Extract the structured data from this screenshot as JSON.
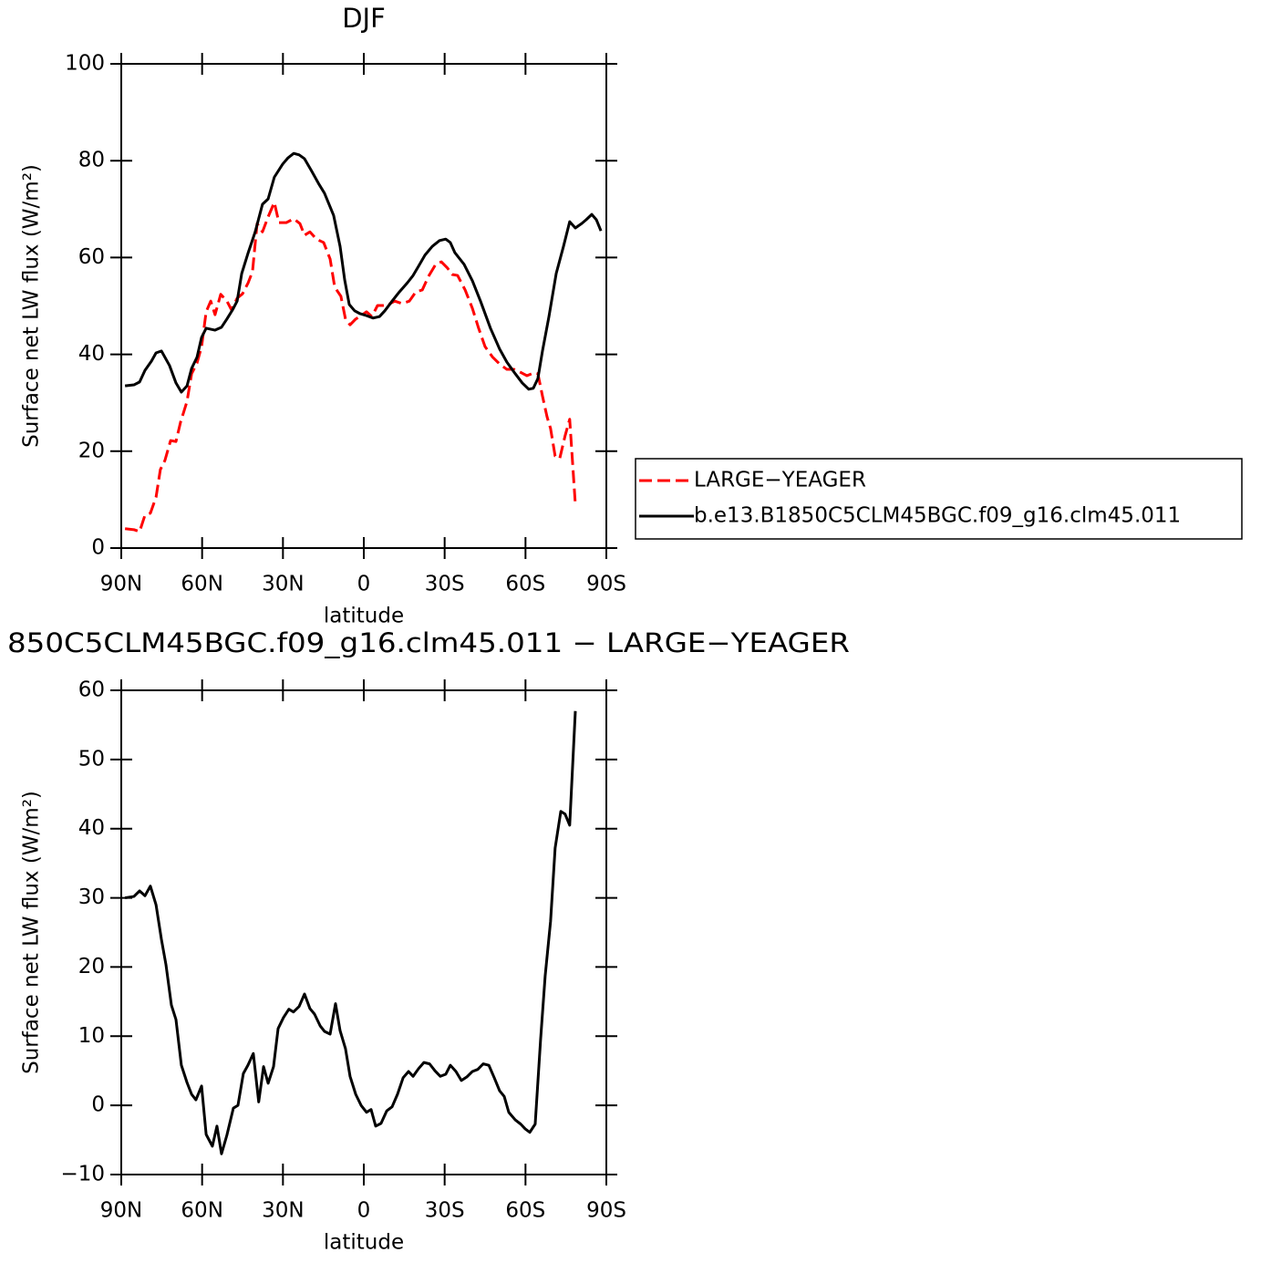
{
  "chart_data": [
    {
      "type": "line",
      "title": "DJF",
      "x_label": "latitude",
      "y_label": "Surface net LW flux (W/m²)",
      "xlim": [
        90,
        -90
      ],
      "xticks": [
        {
          "value": 90,
          "label": "90N"
        },
        {
          "value": 60,
          "label": "60N"
        },
        {
          "value": 30,
          "label": "30N"
        },
        0,
        {
          "value": -30,
          "label": "30S"
        },
        {
          "value": -60,
          "label": "60S"
        },
        {
          "value": -90,
          "label": "90S"
        }
      ],
      "ylim": [
        0,
        100
      ],
      "yticks": [
        0,
        20,
        40,
        60,
        80,
        100
      ],
      "legend": "right",
      "series": [
        {
          "name": "LARGE−YEAGER",
          "color": "#ff0000",
          "dash": "dashed",
          "x": [
            88.6,
            85.3,
            83.2,
            81.2,
            79.2,
            77.1,
            75.5,
            73.8,
            71.7,
            69.7,
            68.0,
            65.6,
            63.9,
            61.9,
            60.2,
            58.5,
            56.8,
            55.2,
            53.1,
            50.8,
            49.1,
            47.0,
            45.0,
            42.9,
            41.3,
            39.6,
            37.6,
            35.5,
            33.2,
            31.5,
            28.8,
            26.0,
            23.7,
            22.0,
            20.0,
            17.6,
            14.9,
            12.5,
            10.8,
            8.5,
            6.8,
            5.1,
            3.0,
            1.0,
            -1.0,
            -3.0,
            -5.1,
            -7.1,
            -9.1,
            -11.5,
            -14.2,
            -16.9,
            -19.3,
            -21.7,
            -24.0,
            -26.7,
            -28.8,
            -31.1,
            -32.8,
            -34.8,
            -37.6,
            -40.3,
            -42.6,
            -45.0,
            -47.7,
            -50.4,
            -53.1,
            -55.8,
            -58.5,
            -60.5,
            -63.2,
            -64.6,
            -66.3,
            -68.0,
            -69.3,
            -71.0,
            -72.7,
            -74.7,
            -76.4,
            -78.5
          ],
          "values": [
            4.0,
            3.8,
            3.4,
            6.8,
            7.2,
            10.5,
            16.2,
            18.1,
            22.2,
            22.0,
            26.0,
            30.3,
            36.0,
            38.2,
            41.6,
            48.8,
            51.0,
            48.2,
            52.4,
            51.0,
            49.2,
            51.6,
            52.5,
            54.8,
            57.1,
            67.0,
            65.3,
            68.4,
            71.4,
            67.2,
            67.2,
            68.0,
            67.0,
            64.6,
            65.3,
            63.8,
            63.1,
            59.7,
            53.9,
            52.0,
            47.3,
            46.1,
            47.3,
            48.0,
            48.8,
            47.8,
            50.1,
            50.1,
            50.3,
            51.0,
            50.5,
            51.0,
            52.9,
            53.3,
            56.1,
            58.6,
            59.1,
            57.8,
            56.5,
            56.3,
            53.3,
            49.5,
            45.4,
            41.6,
            39.5,
            38.0,
            36.9,
            36.9,
            36.2,
            35.6,
            36.2,
            36.0,
            31.4,
            27.1,
            24.7,
            19.0,
            18.5,
            23.2,
            26.6,
            9.0
          ]
        },
        {
          "name": "b.e13.B1850C5CLM45BGC.f09_g16.clm45.011",
          "color": "#000000",
          "dash": "solid",
          "x": [
            88.6,
            85.3,
            83.2,
            81.2,
            78.8,
            77.1,
            75.1,
            72.1,
            69.7,
            67.7,
            65.6,
            63.9,
            61.9,
            60.2,
            58.5,
            55.2,
            52.8,
            50.8,
            48.7,
            47.0,
            45.3,
            42.9,
            40.3,
            37.6,
            35.5,
            33.2,
            30.1,
            28.1,
            26.0,
            24.0,
            22.0,
            19.3,
            16.6,
            14.6,
            11.2,
            8.8,
            7.1,
            5.4,
            3.4,
            1.4,
            -1.0,
            -3.4,
            -5.8,
            -7.8,
            -10.5,
            -13.2,
            -16.2,
            -18.3,
            -20.3,
            -22.7,
            -25.4,
            -28.1,
            -30.4,
            -32.1,
            -33.8,
            -37.2,
            -40.3,
            -43.3,
            -47.0,
            -50.4,
            -53.1,
            -56.2,
            -58.8,
            -61.2,
            -62.9,
            -64.6,
            -66.3,
            -68.7,
            -71.4,
            -74.1,
            -76.4,
            -78.5,
            -80.8,
            -82.5,
            -84.6,
            -86.3,
            -88.0
          ],
          "values": [
            33.5,
            33.7,
            34.3,
            36.7,
            38.6,
            40.3,
            40.7,
            37.7,
            34.1,
            32.2,
            33.5,
            37.1,
            39.4,
            43.5,
            45.4,
            45.0,
            45.6,
            47.3,
            49.2,
            51.0,
            56.7,
            61.0,
            65.3,
            71.0,
            72.1,
            76.6,
            79.3,
            80.6,
            81.5,
            81.2,
            80.4,
            77.8,
            75.1,
            73.3,
            68.7,
            62.3,
            55.4,
            50.3,
            49.0,
            48.4,
            48.0,
            47.5,
            47.8,
            49.0,
            51.0,
            52.9,
            54.8,
            56.3,
            58.2,
            60.5,
            62.3,
            63.5,
            63.8,
            63.1,
            61.0,
            58.6,
            55.2,
            51.0,
            45.4,
            41.1,
            38.4,
            36.0,
            34.1,
            32.8,
            33.0,
            35.0,
            40.7,
            47.8,
            56.7,
            62.3,
            67.4,
            66.1,
            67.0,
            67.8,
            68.9,
            67.8,
            65.5
          ]
        }
      ]
    },
    {
      "type": "line",
      "title": "850C5CLM45BGC.f09_g16.clm45.011 − LARGE−YEAGER",
      "x_label": "latitude",
      "y_label": "Surface net LW flux (W/m²)",
      "xlim": [
        90,
        -90
      ],
      "xticks": [
        {
          "value": 90,
          "label": "90N"
        },
        {
          "value": 60,
          "label": "60N"
        },
        {
          "value": 30,
          "label": "30N"
        },
        0,
        {
          "value": -30,
          "label": "30S"
        },
        {
          "value": -60,
          "label": "60S"
        },
        {
          "value": -90,
          "label": "90S"
        }
      ],
      "ylim": [
        -10,
        60
      ],
      "yticks": [
        {
          "value": -10,
          "label": "−10"
        },
        0,
        10,
        20,
        30,
        40,
        50,
        60
      ],
      "series": [
        {
          "color": "#000000",
          "dash": "solid",
          "x": [
            88.6,
            85.3,
            83.2,
            81.2,
            79.2,
            77.1,
            75.1,
            73.4,
            71.4,
            69.7,
            67.7,
            65.6,
            63.9,
            62.3,
            60.2,
            58.5,
            56.2,
            54.5,
            52.8,
            50.8,
            48.4,
            46.7,
            44.7,
            43.0,
            41.0,
            39.0,
            37.2,
            35.5,
            33.5,
            31.8,
            29.8,
            27.8,
            26.1,
            24.0,
            22.0,
            20.0,
            18.3,
            16.2,
            14.6,
            12.5,
            10.5,
            8.8,
            6.8,
            5.1,
            3.0,
            1.0,
            -1.0,
            -2.7,
            -4.4,
            -6.4,
            -8.5,
            -10.5,
            -12.5,
            -14.6,
            -16.6,
            -18.3,
            -20.3,
            -22.3,
            -24.4,
            -26.4,
            -28.4,
            -30.4,
            -32.1,
            -34.2,
            -36.2,
            -38.2,
            -40.3,
            -42.3,
            -44.3,
            -46.4,
            -48.4,
            -50.4,
            -52.1,
            -53.8,
            -56.2,
            -58.2,
            -59.9,
            -61.6,
            -63.6,
            -65.6,
            -67.3,
            -69.3,
            -71.0,
            -73.1,
            -74.7,
            -76.4,
            -78.5
          ],
          "values": [
            30.0,
            30.2,
            31.0,
            30.3,
            31.7,
            29.0,
            24.0,
            20.3,
            14.5,
            12.4,
            5.8,
            3.3,
            1.6,
            0.8,
            2.8,
            -4.2,
            -5.9,
            -3.0,
            -7.0,
            -4.3,
            -0.4,
            0.0,
            4.6,
            5.8,
            7.5,
            0.5,
            5.6,
            3.2,
            5.6,
            11.1,
            12.7,
            13.9,
            13.5,
            14.3,
            16.1,
            14.0,
            13.2,
            11.5,
            10.7,
            10.3,
            14.7,
            10.8,
            8.2,
            4.2,
            1.6,
            0.0,
            -1.0,
            -0.6,
            -3.0,
            -2.6,
            -0.8,
            -0.2,
            1.6,
            4.0,
            4.9,
            4.2,
            5.3,
            6.2,
            6.0,
            5.0,
            4.2,
            4.5,
            5.8,
            4.9,
            3.6,
            4.1,
            4.9,
            5.2,
            6.0,
            5.8,
            4.0,
            2.1,
            1.3,
            -1.0,
            -2.1,
            -2.7,
            -3.4,
            -3.9,
            -2.7,
            9.5,
            18.7,
            26.6,
            37.2,
            42.5,
            42.1,
            40.5,
            57.0
          ]
        }
      ]
    }
  ]
}
